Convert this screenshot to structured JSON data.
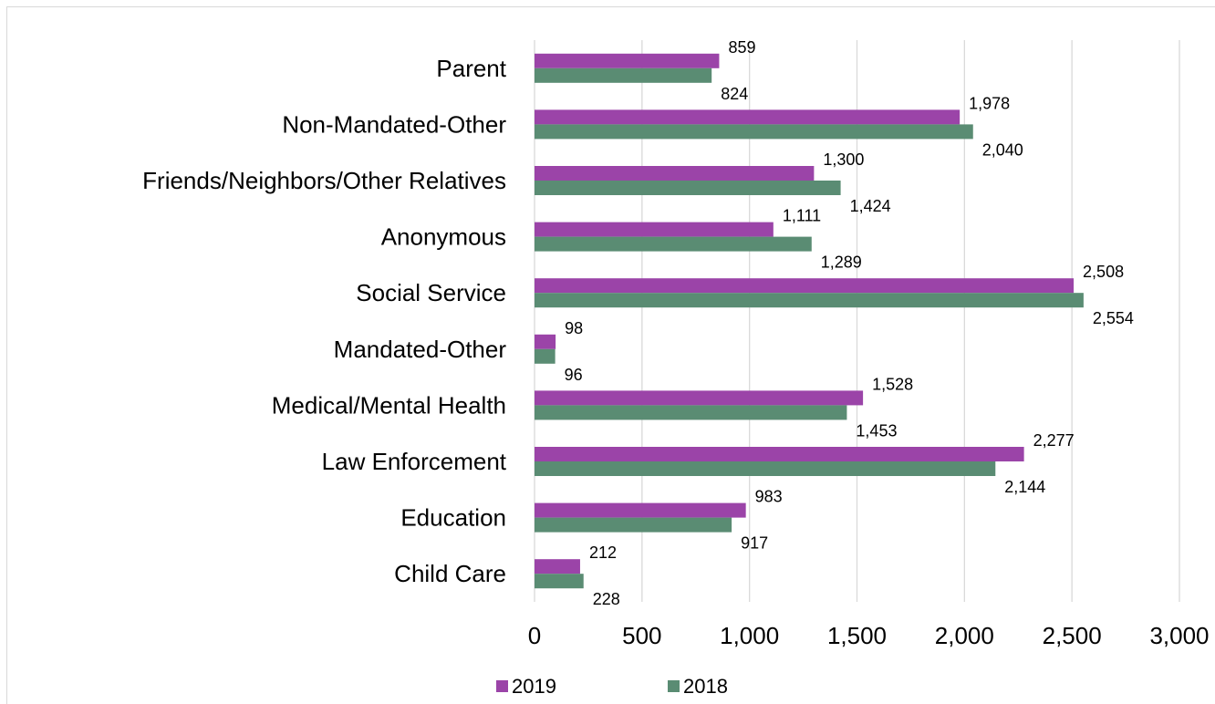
{
  "chart_data": {
    "type": "bar",
    "orientation": "horizontal",
    "title": "",
    "xlabel": "",
    "ylabel": "",
    "xlim": [
      0,
      3000
    ],
    "xticks": [
      0,
      500,
      1000,
      1500,
      2000,
      2500,
      3000
    ],
    "xtick_labels": [
      "0",
      "500",
      "1,000",
      "1,500",
      "2,000",
      "2,500",
      "3,000"
    ],
    "grid": "vertical",
    "legend_position": "bottom",
    "categories": [
      "Parent",
      "Non-Mandated-Other",
      "Friends/Neighbors/Other Relatives",
      "Anonymous",
      "Social Service",
      "Mandated-Other",
      "Medical/Mental Health",
      "Law Enforcement",
      "Education",
      "Child Care"
    ],
    "series": [
      {
        "name": "2019",
        "color": "#9b44a8",
        "values": [
          859,
          1978,
          1300,
          1111,
          2508,
          98,
          1528,
          2277,
          983,
          212
        ],
        "labels": [
          "859",
          "1,978",
          "1,300",
          "1,111",
          "2,508",
          "98",
          "1,528",
          "2,277",
          "983",
          "212"
        ]
      },
      {
        "name": "2018",
        "color": "#5a8c73",
        "values": [
          824,
          2040,
          1424,
          1289,
          2554,
          96,
          1453,
          2144,
          917,
          228
        ],
        "labels": [
          "824",
          "2,040",
          "1,424",
          "1,289",
          "2,554",
          "96",
          "1,453",
          "2,144",
          "917",
          "228"
        ]
      }
    ]
  }
}
